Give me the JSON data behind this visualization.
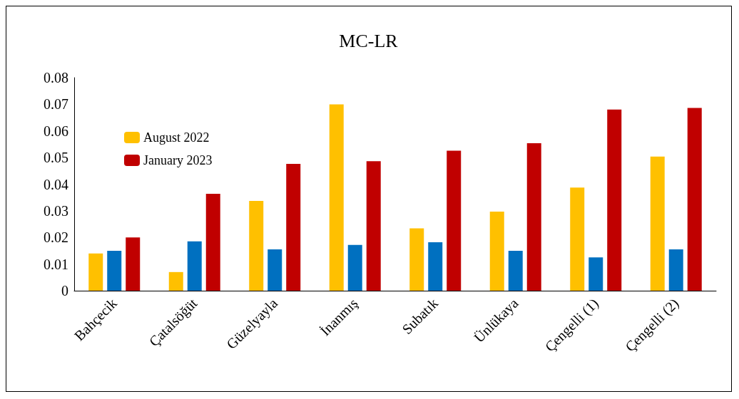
{
  "chart_data": {
    "type": "bar",
    "title": "MC-LR",
    "categories": [
      "Bahçecik",
      "Çatalsöğüt",
      "Güzelyayla",
      "İnanmış",
      "Subatık",
      "Ünlükaya",
      "Çengelli (1)",
      "Çengelli (2)"
    ],
    "series": [
      {
        "name": "August 2022",
        "color": "#ffc000",
        "values": [
          0.014,
          0.007,
          0.0337,
          0.07,
          0.0234,
          0.0297,
          0.0387,
          0.0504
        ]
      },
      {
        "color": "#0070c0",
        "values": [
          0.015,
          0.0185,
          0.0155,
          0.0172,
          0.0182,
          0.015,
          0.0125,
          0.0155
        ]
      },
      {
        "name": "January 2023",
        "color": "#c00000",
        "values": [
          0.02,
          0.0364,
          0.0476,
          0.0486,
          0.0526,
          0.0554,
          0.068,
          0.0686
        ]
      }
    ],
    "ylim": [
      0,
      0.08
    ],
    "yticks": [
      0,
      0.01,
      0.02,
      0.03,
      0.04,
      0.05,
      0.06,
      0.07,
      0.08
    ],
    "grid": false,
    "legend": "top left"
  }
}
